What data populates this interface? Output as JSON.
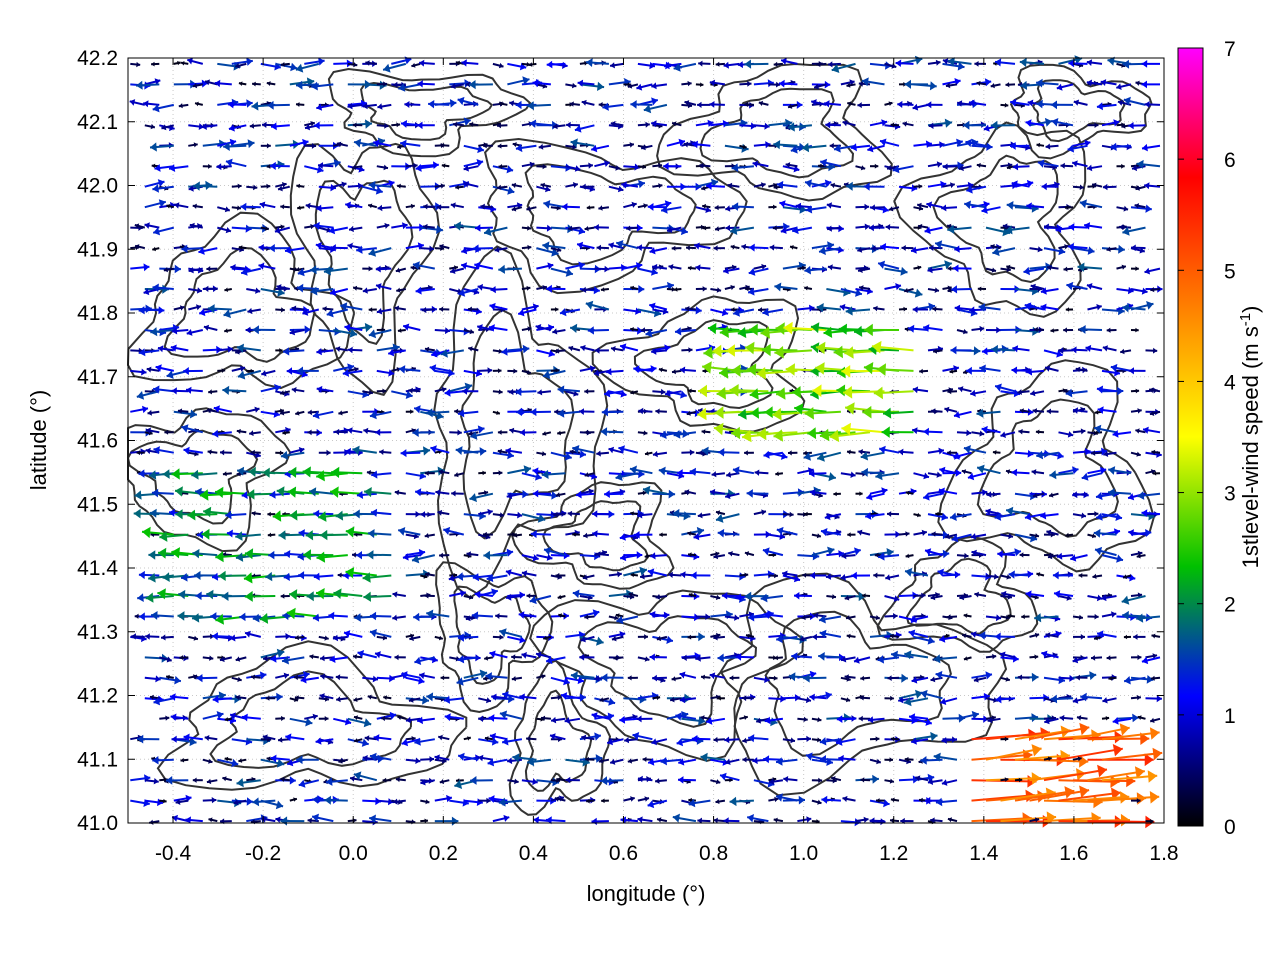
{
  "chart_data": {
    "type": "vector-field",
    "xlabel": "longitude (°)",
    "ylabel": "latitude (°)",
    "xlim": [
      -0.5,
      1.8
    ],
    "ylim": [
      41.0,
      42.2
    ],
    "xticks": [
      "-0.4",
      "-0.2",
      "0.0",
      "0.2",
      "0.4",
      "0.6",
      "0.8",
      "1.0",
      "1.2",
      "1.4",
      "1.6",
      "1.8"
    ],
    "xtick_values": [
      -0.4,
      -0.2,
      0.0,
      0.2,
      0.4,
      0.6,
      0.8,
      1.0,
      1.2,
      1.4,
      1.6,
      1.8
    ],
    "yticks": [
      "41.0",
      "41.1",
      "41.2",
      "41.3",
      "41.4",
      "41.5",
      "41.6",
      "41.7",
      "41.8",
      "41.9",
      "42.0",
      "42.1",
      "42.2"
    ],
    "ytick_values": [
      41.0,
      41.1,
      41.2,
      41.3,
      41.4,
      41.5,
      41.6,
      41.7,
      41.8,
      41.9,
      42.0,
      42.1,
      42.2
    ],
    "grid": true,
    "colorbar": {
      "label_main": "1stlevel-wind speed (m s",
      "label_sup": "-1",
      "label_end": ")",
      "range": [
        0,
        7
      ],
      "ticks": [
        "0",
        "1",
        "2",
        "3",
        "4",
        "5",
        "6",
        "7"
      ],
      "tick_values": [
        0,
        1,
        2,
        3,
        4,
        5,
        6,
        7
      ],
      "stops": [
        "#000000",
        "#0000ff",
        "#00c000",
        "#ffff00",
        "#ff8000",
        "#ff0000",
        "#ff00ff"
      ]
    },
    "contour_color": "#333333",
    "wind_regions": [
      {
        "lon": [
          0.85,
          1.25
        ],
        "lat": [
          41.6,
          41.8
        ],
        "speed": 2.8,
        "direction_deg": 180
      },
      {
        "lon": [
          1.35,
          1.8
        ],
        "lat": [
          41.0,
          41.15
        ],
        "speed": 5.0,
        "direction_deg": 5
      },
      {
        "lon": [
          -0.5,
          0.1
        ],
        "lat": [
          41.3,
          41.55
        ],
        "speed": 1.8,
        "direction_deg": 180
      }
    ]
  }
}
